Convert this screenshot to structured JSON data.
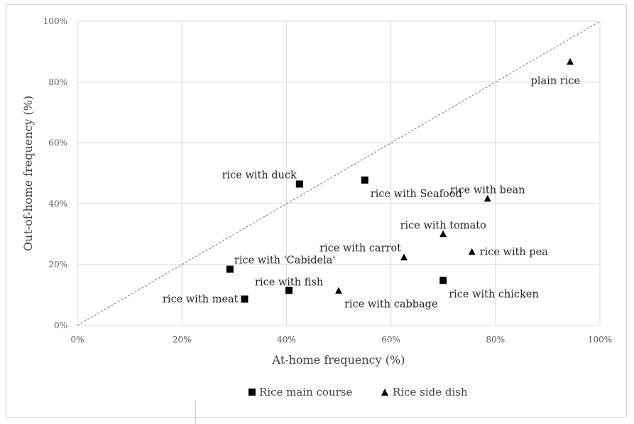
{
  "chart_data": {
    "type": "scatter",
    "title": "",
    "xlabel": "At-home frequency (%)",
    "ylabel": "Out-of-home frequency (%)",
    "xlim": [
      0,
      100
    ],
    "ylim": [
      0,
      100
    ],
    "x_ticks": [
      "0%",
      "20%",
      "40%",
      "60%",
      "80%",
      "100%"
    ],
    "y_ticks": [
      "0%",
      "20%",
      "40%",
      "60%",
      "80%",
      "100%"
    ],
    "grid": true,
    "reference_line": {
      "label": "",
      "style": "dashed",
      "from": [
        0,
        0
      ],
      "to": [
        100,
        100
      ]
    },
    "legend_position": "bottom",
    "series": [
      {
        "name": "Rice main course",
        "marker": "square",
        "points": [
          {
            "label": "rice with duck",
            "x": 42.5,
            "y": 46.5,
            "label_pos": "above-left"
          },
          {
            "label": "rice with Seafood",
            "x": 55.0,
            "y": 47.8,
            "label_pos": "below-right"
          },
          {
            "label": "rice with 'Cabidela'",
            "x": 29.2,
            "y": 18.5,
            "label_pos": "above-right"
          },
          {
            "label": "rice with fish",
            "x": 40.5,
            "y": 11.5,
            "label_pos": "above"
          },
          {
            "label": "rice with meat",
            "x": 32.0,
            "y": 8.7,
            "label_pos": "left"
          },
          {
            "label": "rice with chicken",
            "x": 70.0,
            "y": 14.8,
            "label_pos": "below-right"
          }
        ]
      },
      {
        "name": "Rice side dish",
        "marker": "triangle",
        "points": [
          {
            "label": "plain rice",
            "x": 94.3,
            "y": 86.8,
            "label_pos": "below-left"
          },
          {
            "label": "rice with bean",
            "x": 78.5,
            "y": 41.8,
            "label_pos": "above"
          },
          {
            "label": "rice with tomato",
            "x": 70.0,
            "y": 30.2,
            "label_pos": "above"
          },
          {
            "label": "rice with carrot",
            "x": 62.5,
            "y": 22.5,
            "label_pos": "above-left"
          },
          {
            "label": "rice with pea",
            "x": 75.5,
            "y": 24.3,
            "label_pos": "right"
          },
          {
            "label": "rice with cabbage",
            "x": 50.0,
            "y": 11.5,
            "label_pos": "below-right"
          }
        ]
      }
    ]
  }
}
